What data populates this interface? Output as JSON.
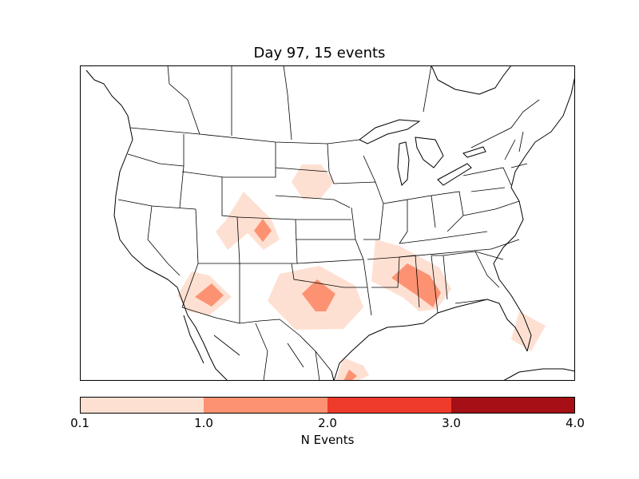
{
  "title": "Day 97, 15 events",
  "map": {
    "region": "Contiguous United States",
    "projection": "Lambert conformal",
    "field": "N Events",
    "contour_colors": [
      "#fee0d2",
      "#fc9272",
      "#ef3b2c",
      "#a50f15"
    ],
    "event_areas": [
      {
        "location": "northern Nebraska",
        "level_bin": "0.1-1.0"
      },
      {
        "location": "Colorado",
        "level_bin": "1.0-2.0"
      },
      {
        "location": "southern Arizona",
        "level_bin": "1.0-2.0"
      },
      {
        "location": "western Oklahoma / north Texas",
        "level_bin": "1.0-2.0"
      },
      {
        "location": "Mississippi",
        "level_bin": "1.0-2.0"
      },
      {
        "location": "south Texas coast",
        "level_bin": "1.0-2.0"
      },
      {
        "location": "southern Florida",
        "level_bin": "0.1-1.0"
      }
    ]
  },
  "colorbar": {
    "label": "N Events",
    "ticks": [
      "0.1",
      "1.0",
      "2.0",
      "3.0",
      "4.0"
    ],
    "colors": [
      "#fee0d2",
      "#fc9272",
      "#ef3b2c",
      "#a50f15"
    ]
  }
}
